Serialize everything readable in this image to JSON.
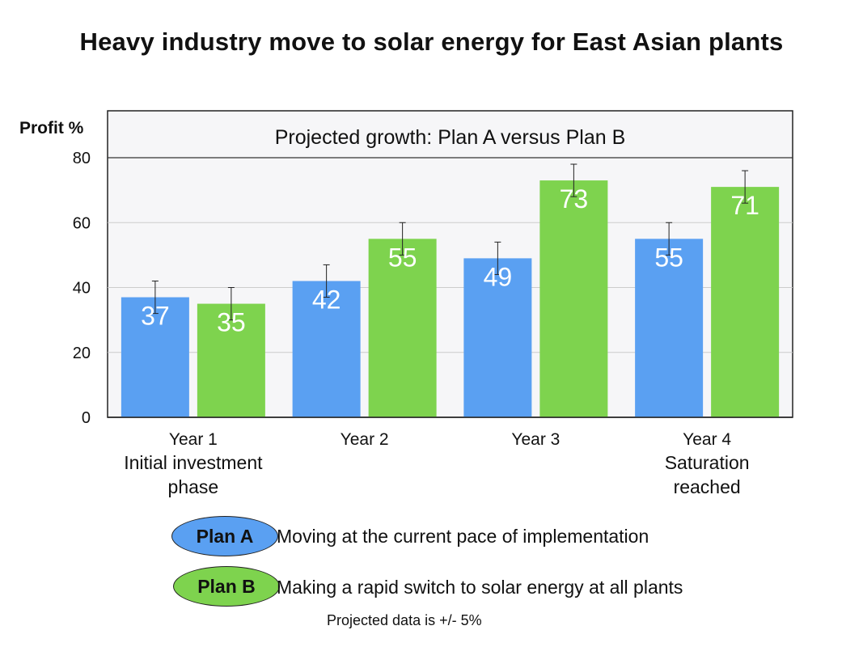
{
  "chart_data": {
    "type": "bar",
    "title": "Heavy industry move to solar energy for East Asian plants",
    "subtitle": "Projected growth: Plan A versus Plan B",
    "ylabel": "Profit %",
    "ylim": [
      0,
      80
    ],
    "y_ticks": [
      "0",
      "20",
      "40",
      "60",
      "80"
    ],
    "grid": true,
    "categories": [
      [
        "Year 1",
        "Initial investment",
        "phase"
      ],
      [
        "Year 2"
      ],
      [
        "Year 3"
      ],
      [
        "Year 4",
        "Saturation",
        "reached"
      ]
    ],
    "series": [
      {
        "name": "Plan A",
        "values": [
          37,
          42,
          49,
          55
        ],
        "color": "#5aa0f2",
        "error_upper": [
          5,
          5,
          5,
          5
        ],
        "error_lower": [
          5,
          5,
          5,
          5
        ]
      },
      {
        "name": "Plan B",
        "values": [
          35,
          55,
          73,
          71
        ],
        "color": "#7ed34e",
        "error_upper": [
          5,
          5,
          5,
          5
        ],
        "error_lower": [
          5,
          5,
          5,
          5
        ]
      }
    ]
  },
  "legend": {
    "plan_a": {
      "label": "Plan A",
      "description": "Moving at the current pace of implementation",
      "color": "#5aa0f2"
    },
    "plan_b": {
      "label": "Plan B",
      "description": "Making a rapid switch to solar energy at all plants",
      "color": "#7ed34e"
    }
  },
  "footnote": "Projected data is +/- 5%"
}
